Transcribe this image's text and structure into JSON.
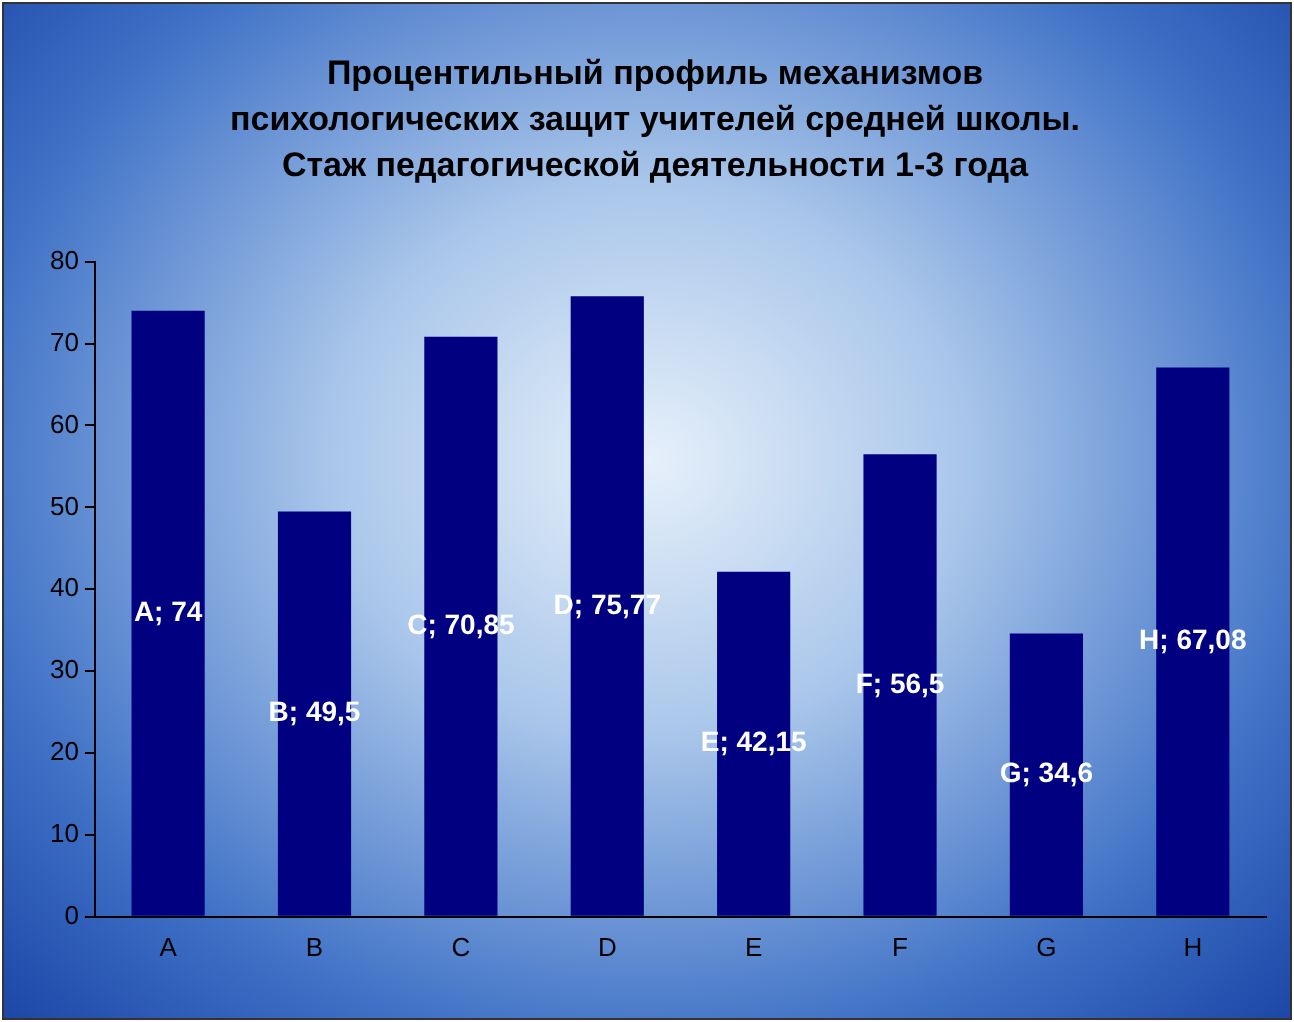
{
  "chart_data": {
    "type": "bar",
    "title": "Процентильный профиль механизмов\nпсихологических защит учителей средней школы.\nСтаж педагогической деятельности 1-3 года",
    "categories": [
      "A",
      "B",
      "C",
      "D",
      "E",
      "F",
      "G",
      "H"
    ],
    "values": [
      74,
      49.5,
      70.85,
      75.77,
      42.15,
      56.5,
      34.6,
      67.08
    ],
    "value_labels": [
      "A; 74",
      "B; 49,5",
      "C; 70,85",
      "D; 75,77",
      "E; 42,15",
      "F; 56,5",
      "G; 34,6",
      "H; 67,08"
    ],
    "color": "#000080",
    "ylim": [
      0,
      80
    ],
    "yticks": [
      0,
      10,
      20,
      30,
      40,
      50,
      60,
      70,
      80
    ],
    "grid": false,
    "legend": false
  }
}
